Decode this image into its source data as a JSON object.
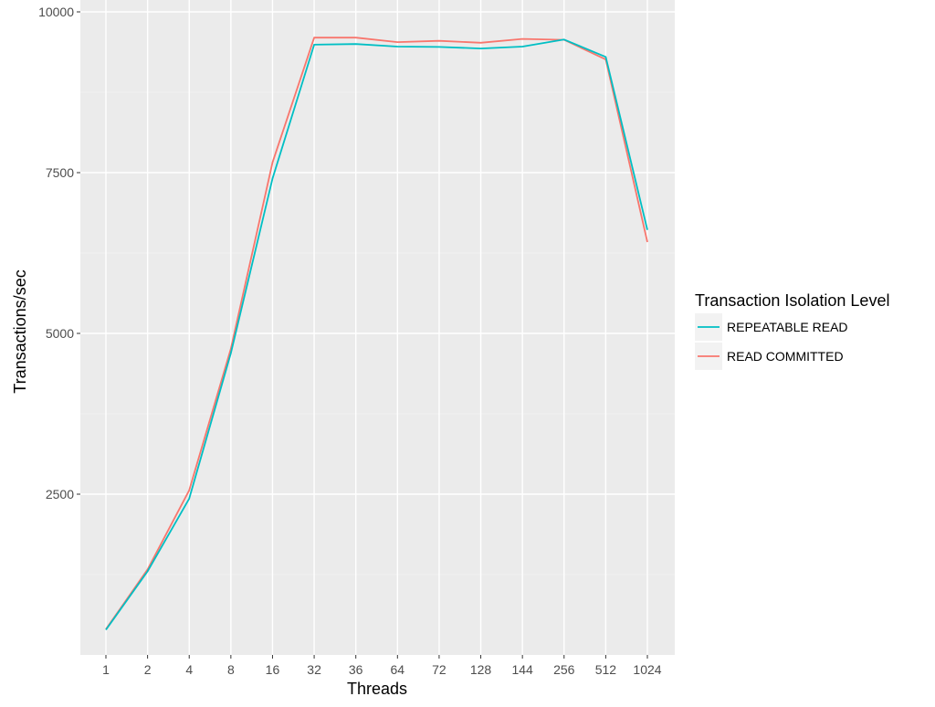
{
  "chart_data": {
    "type": "line",
    "title": "",
    "xlabel": "Threads",
    "ylabel": "Transactions/sec",
    "categories": [
      "1",
      "2",
      "4",
      "8",
      "16",
      "32",
      "36",
      "64",
      "72",
      "128",
      "144",
      "256",
      "512",
      "1024"
    ],
    "ylim": [
      0,
      10000
    ],
    "yticks": [
      2500,
      5000,
      7500,
      10000
    ],
    "grid": true,
    "legend": {
      "title": "Transaction Isolation Level",
      "position": "right"
    },
    "series": [
      {
        "name": "REPEATABLE READ",
        "color": "#00BFC4",
        "values": [
          390,
          1300,
          2430,
          4690,
          7410,
          9490,
          9500,
          9460,
          9455,
          9430,
          9460,
          9570,
          9300,
          6610
        ]
      },
      {
        "name": "READ COMMITTED",
        "color": "#F8766D",
        "values": [
          400,
          1330,
          2560,
          4760,
          7660,
          9600,
          9600,
          9530,
          9550,
          9520,
          9580,
          9565,
          9260,
          6420
        ]
      }
    ]
  }
}
